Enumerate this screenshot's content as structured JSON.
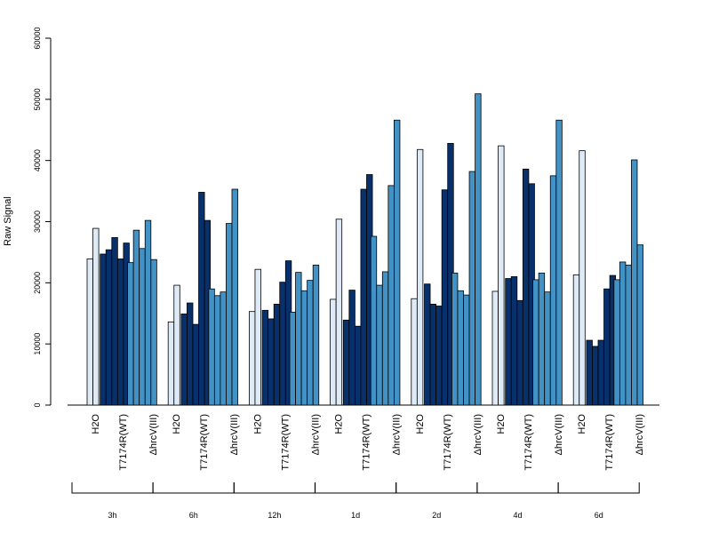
{
  "chart_data": {
    "type": "bar",
    "ylabel": "Raw Signal",
    "ylim": [
      0,
      60000
    ],
    "yticks": [
      0,
      10000,
      20000,
      30000,
      40000,
      50000,
      60000
    ],
    "grid": false,
    "colors": {
      "H2O": "#deebf7",
      "T7174R(WT)": "#08306b",
      "ΔhrcV(III)": "#4292c6"
    },
    "timepoints": [
      {
        "label": "3h",
        "groups": [
          {
            "name": "H2O",
            "values": [
              23900,
              28900
            ]
          },
          {
            "name": "T7174R(WT)",
            "values": [
              24700,
              25400,
              27400,
              23900,
              26500
            ]
          },
          {
            "name": "ΔhrcV(III)",
            "values": [
              23300,
              28600,
              25600,
              30200,
              23800
            ]
          }
        ]
      },
      {
        "label": "6h",
        "groups": [
          {
            "name": "H2O",
            "values": [
              13600,
              19600
            ]
          },
          {
            "name": "T7174R(WT)",
            "values": [
              14900,
              16700,
              13200,
              34800,
              30200
            ]
          },
          {
            "name": "ΔhrcV(III)",
            "values": [
              19000,
              17900,
              18500,
              29700,
              35300
            ]
          }
        ]
      },
      {
        "label": "12h",
        "groups": [
          {
            "name": "H2O",
            "values": [
              15300,
              22200
            ]
          },
          {
            "name": "T7174R(WT)",
            "values": [
              15500,
              14100,
              16500,
              20100,
              23600
            ]
          },
          {
            "name": "ΔhrcV(III)",
            "values": [
              15200,
              21700,
              18700,
              20400,
              22900
            ]
          }
        ]
      },
      {
        "label": "1d",
        "groups": [
          {
            "name": "H2O",
            "values": [
              17300,
              30400
            ]
          },
          {
            "name": "T7174R(WT)",
            "values": [
              13900,
              18800,
              12900,
              35300,
              37700
            ]
          },
          {
            "name": "ΔhrcV(III)",
            "values": [
              27600,
              19600,
              21800,
              35900,
              46600
            ]
          }
        ]
      },
      {
        "label": "2d",
        "groups": [
          {
            "name": "H2O",
            "values": [
              17400,
              41800
            ]
          },
          {
            "name": "T7174R(WT)",
            "values": [
              19800,
              16500,
              16200,
              35200,
              42800
            ]
          },
          {
            "name": "ΔhrcV(III)",
            "values": [
              21600,
              18700,
              18000,
              38200,
              50900
            ]
          }
        ]
      },
      {
        "label": "4d",
        "groups": [
          {
            "name": "H2O",
            "values": [
              18600,
              42400
            ]
          },
          {
            "name": "T7174R(WT)",
            "values": [
              20700,
              21000,
              17100,
              38600,
              36200
            ]
          },
          {
            "name": "ΔhrcV(III)",
            "values": [
              20500,
              21600,
              18500,
              37500,
              46600
            ]
          }
        ]
      },
      {
        "label": "6d",
        "groups": [
          {
            "name": "H2O",
            "values": [
              21300,
              41600
            ]
          },
          {
            "name": "T7174R(WT)",
            "values": [
              10600,
              9600,
              10600,
              19000,
              21200
            ]
          },
          {
            "name": "ΔhrcV(III)",
            "values": [
              20500,
              23400,
              22900,
              40100,
              26200
            ]
          }
        ]
      }
    ]
  }
}
